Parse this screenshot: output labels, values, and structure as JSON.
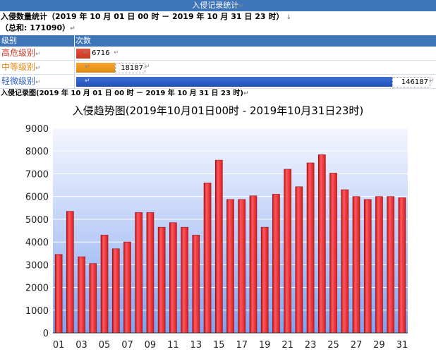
{
  "page_title": "入侵记录统计",
  "summary": {
    "heading": "入侵数量统计（2019 年 10 月 01 日 00 时 － 2019 年 10 月 31 日 23 时）",
    "total": "（总和: 171090）"
  },
  "table": {
    "columns": [
      "级别",
      "次数"
    ],
    "rows": [
      {
        "label": "高危级别",
        "value": "6716",
        "count": 6716,
        "color": "#c0392b"
      },
      {
        "label": "中等级别",
        "value": "18187",
        "count": 18187,
        "color": "#e8870f"
      },
      {
        "label": "轻微级别",
        "value": "146187",
        "count": 146187,
        "color": "#2d5fc4"
      }
    ]
  },
  "chart_section_heading": "入侵记录图(2019 年 10 月 01 日 00 时 － 2019 年 10 月 31 日 23 时)",
  "chart_data": {
    "type": "bar",
    "title": "入侵趋势图(2019年10月01日00时 - 2019年10月31日23时)",
    "xlabel": "",
    "ylabel": "",
    "ylim": [
      0,
      9000
    ],
    "yticks": [
      "0",
      "1000",
      "2000",
      "3000",
      "4000",
      "5000",
      "6000",
      "7000",
      "8000",
      "9000"
    ],
    "categories": [
      "01",
      "02",
      "03",
      "04",
      "05",
      "06",
      "07",
      "08",
      "09",
      "10",
      "11",
      "12",
      "13",
      "14",
      "15",
      "16",
      "17",
      "18",
      "19",
      "20",
      "21",
      "22",
      "23",
      "24",
      "25",
      "26",
      "27",
      "28",
      "29",
      "30",
      "31"
    ],
    "x_tick_labels": [
      "01",
      "03",
      "05",
      "07",
      "09",
      "11",
      "13",
      "15",
      "17",
      "19",
      "21",
      "23",
      "25",
      "27",
      "29",
      "31"
    ],
    "values": [
      3450,
      5350,
      3350,
      3050,
      4300,
      3700,
      4000,
      5300,
      5300,
      4650,
      4850,
      4650,
      4300,
      6600,
      7600,
      5870,
      5870,
      6030,
      4650,
      6100,
      7200,
      6430,
      7480,
      7840,
      7030,
      6300,
      6000,
      5870,
      6000,
      6000,
      5950
    ],
    "grid": true,
    "bar_color": "#e8262a"
  }
}
